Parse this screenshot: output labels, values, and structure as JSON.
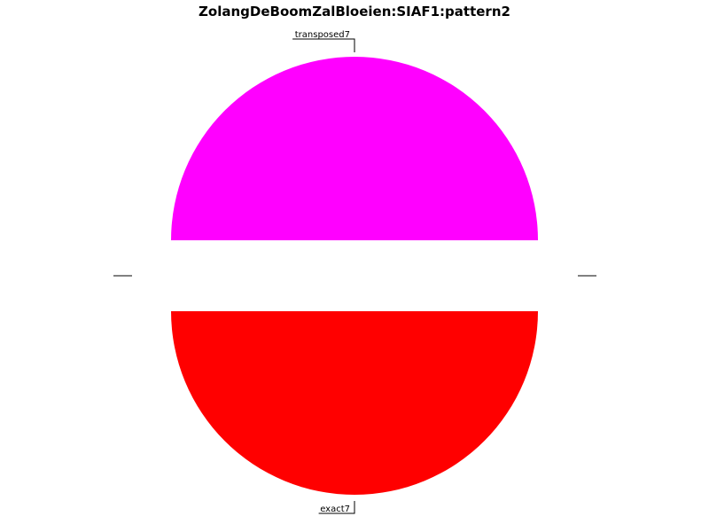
{
  "chart_data": {
    "type": "pie",
    "title": "ZolangDeBoomZalBloeien:SIAF1:pattern2",
    "slices": [
      {
        "label": "transposed7",
        "value": 50,
        "color": "#ff00ff"
      },
      {
        "label": "exact7",
        "value": 50,
        "color": "#ff0000"
      }
    ],
    "exploded": true,
    "start_angle_deg": 0,
    "legend": "none",
    "grid": false
  }
}
